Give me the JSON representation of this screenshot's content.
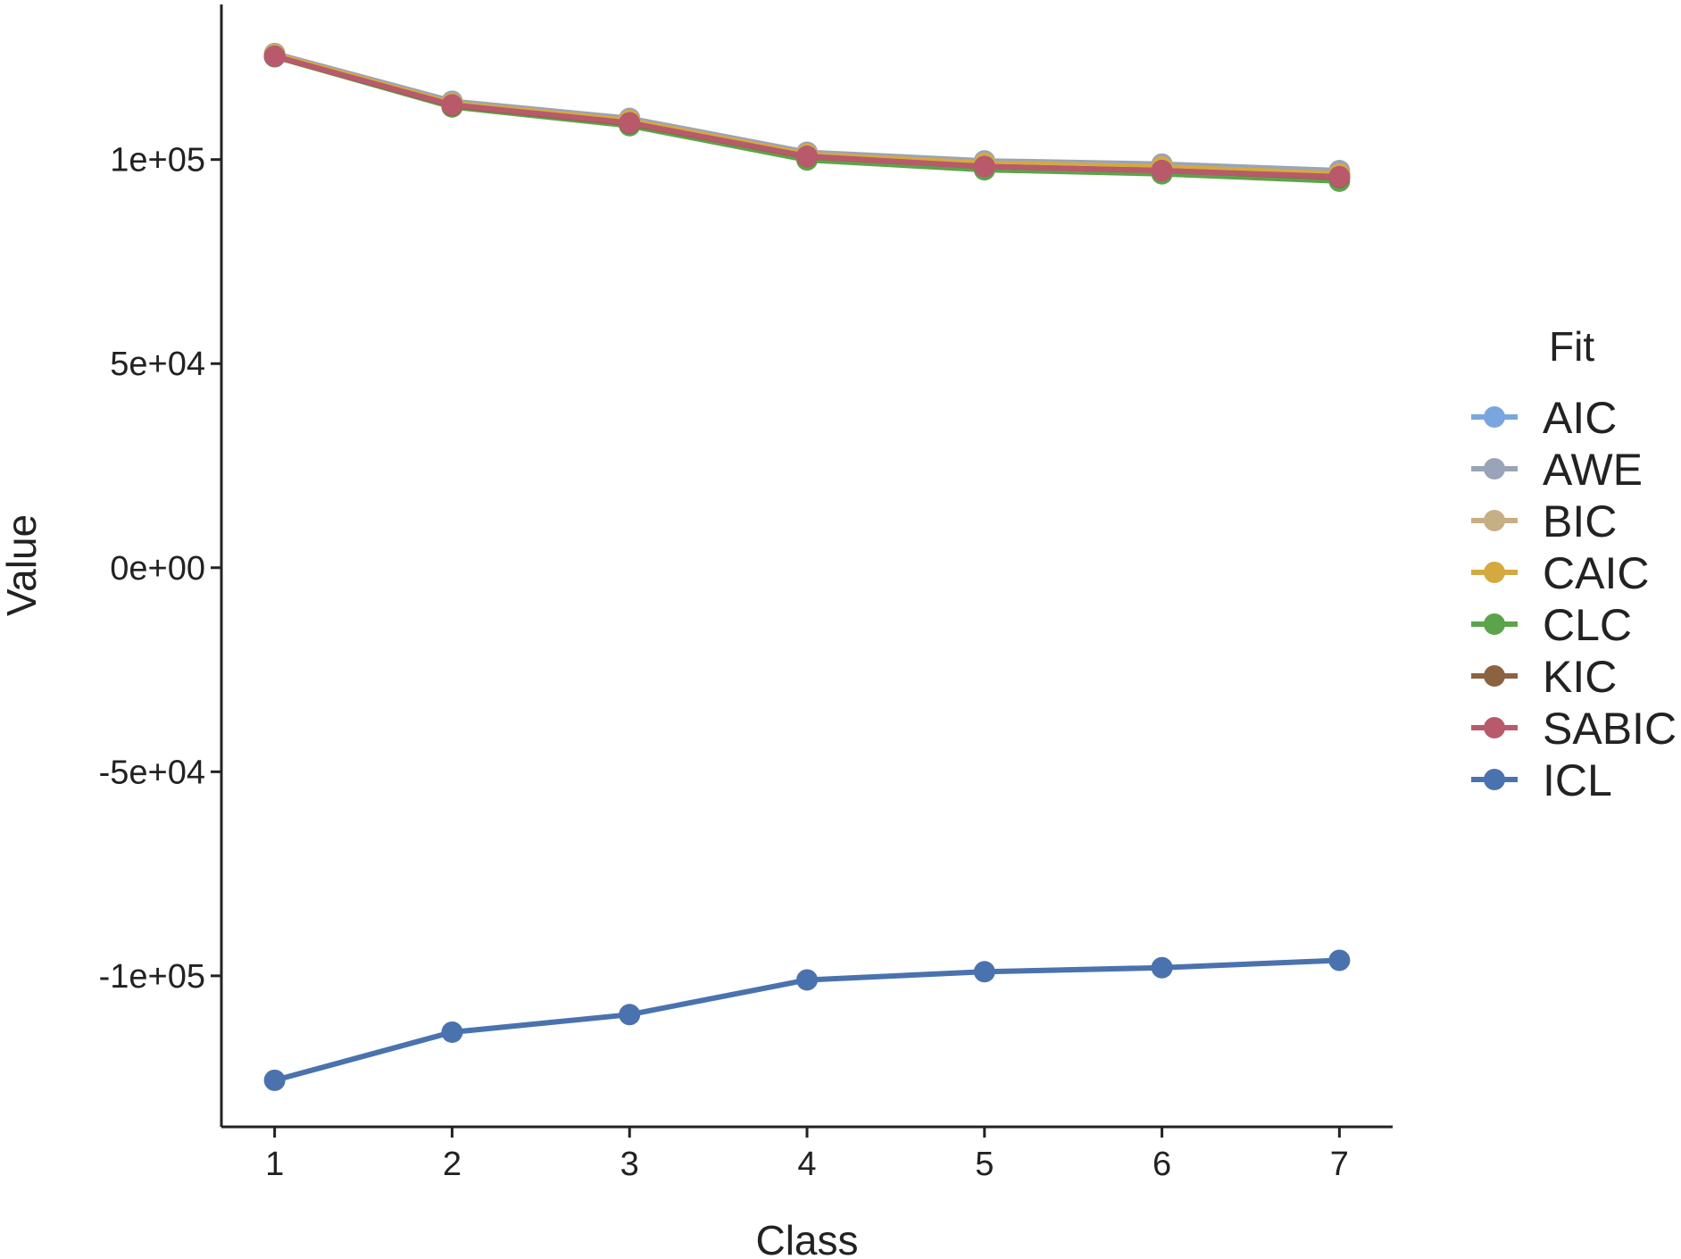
{
  "chart_data": {
    "type": "line",
    "xlabel": "Class",
    "ylabel": "Value",
    "categories": [
      1,
      2,
      3,
      4,
      5,
      6,
      7
    ],
    "xlim": [
      0.7,
      7.3
    ],
    "ylim": [
      -137000,
      138000
    ],
    "yticks": [
      -100000,
      -50000,
      0,
      50000,
      100000
    ],
    "ytick_labels": [
      "-1e+05",
      "-5e+04",
      "0e+00",
      "5e+04",
      "1e+05"
    ],
    "xticks": [
      1,
      2,
      3,
      4,
      5,
      6,
      7
    ],
    "xtick_labels": [
      "1",
      "2",
      "3",
      "4",
      "5",
      "6",
      "7"
    ],
    "grid": false,
    "legend": {
      "title": "Fit",
      "position": "right"
    },
    "series": [
      {
        "name": "AIC",
        "color": "#7AA6E0",
        "values": [
          125200,
          113200,
          108800,
          100700,
          98300,
          97300,
          95600
        ]
      },
      {
        "name": "AWE",
        "color": "#9AA4B8",
        "values": [
          126000,
          114300,
          110100,
          101800,
          99700,
          98900,
          97300
        ]
      },
      {
        "name": "BIC",
        "color": "#C6AE85",
        "values": [
          125700,
          113700,
          109500,
          101200,
          99000,
          98000,
          96400
        ]
      },
      {
        "name": "CAIC",
        "color": "#D4AA40",
        "values": [
          125700,
          113800,
          109600,
          101300,
          99100,
          98200,
          96500
        ]
      },
      {
        "name": "CLC",
        "color": "#5DA34B",
        "values": [
          125200,
          112900,
          108300,
          99900,
          97500,
          96500,
          94700
        ]
      },
      {
        "name": "KIC",
        "color": "#8C6341",
        "values": [
          125300,
          113200,
          108800,
          100700,
          98300,
          97300,
          95600
        ]
      },
      {
        "name": "SABIC",
        "color": "#B85A6C",
        "values": [
          125300,
          113400,
          109000,
          100800,
          98300,
          97300,
          95800
        ]
      },
      {
        "name": "ICL",
        "color": "#4A72AE",
        "values": [
          -125600,
          -113800,
          -109500,
          -101000,
          -99000,
          -98000,
          -96200
        ]
      }
    ]
  }
}
